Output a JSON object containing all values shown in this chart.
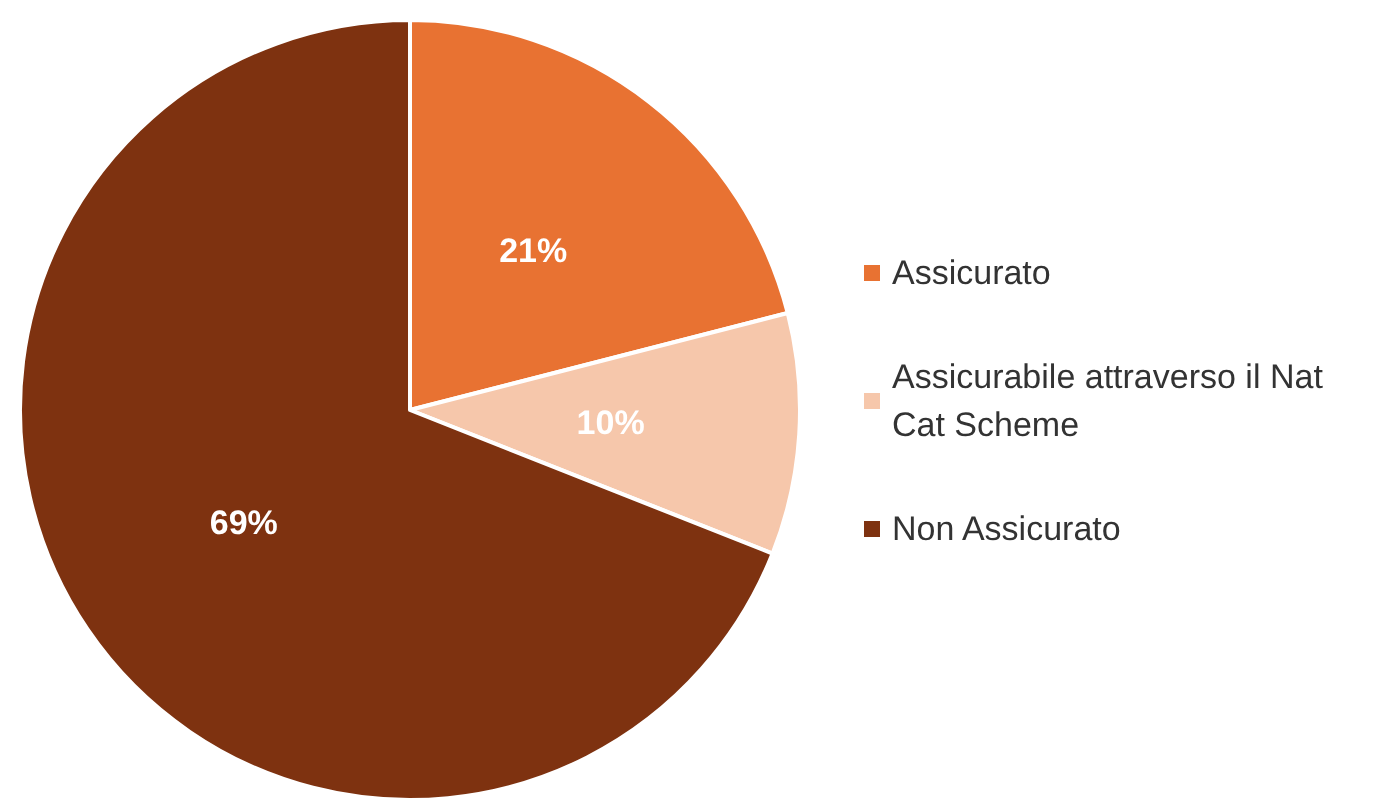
{
  "chart_data": {
    "type": "pie",
    "categories": [
      "Assicurato",
      "Assicurabile attraverso il Nat Cat Scheme",
      "Non Assicurato"
    ],
    "values": [
      21,
      10,
      69
    ],
    "colors": [
      "#e87232",
      "#f6c7ab",
      "#7e3210"
    ],
    "value_labels": [
      "21%",
      "10%",
      "69%"
    ],
    "legend": "right"
  }
}
